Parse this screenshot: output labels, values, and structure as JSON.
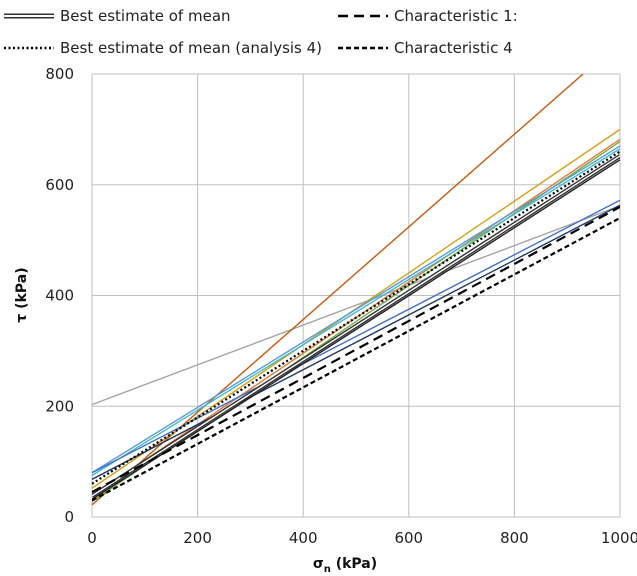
{
  "chart_data": {
    "type": "line",
    "title": "",
    "xlabel_main": "σ",
    "xlabel_sub": "n",
    "xlabel_unit": " (kPa)",
    "ylabel": "τ (kPa)",
    "xlim": [
      0,
      1000
    ],
    "ylim": [
      0,
      800
    ],
    "xticks": [
      0,
      200,
      400,
      600,
      800,
      1000
    ],
    "yticks": [
      0,
      200,
      400,
      600,
      800
    ],
    "grid": true,
    "legend_position": "top",
    "legend": [
      {
        "name": "Best estimate of mean",
        "style": "double"
      },
      {
        "name": "Characteristic 1:",
        "style": "longdash"
      },
      {
        "name": "Best estimate of mean (analysis 4)",
        "style": "dotted"
      },
      {
        "name": "Characteristic 4",
        "style": "shortdash"
      }
    ],
    "series": [
      {
        "color": "#a5a5a5",
        "x": [
          0,
          1000
        ],
        "y": [
          203,
          562
        ]
      },
      {
        "color": "#c55a11",
        "x": [
          0,
          930
        ],
        "y": [
          22,
          800
        ]
      },
      {
        "color": "#d4a017",
        "x": [
          0,
          1000
        ],
        "y": [
          52,
          700
        ]
      },
      {
        "color": "#e07b39",
        "x": [
          0,
          1000
        ],
        "y": [
          38,
          682
        ]
      },
      {
        "color": "#70ad47",
        "x": [
          0,
          1000
        ],
        "y": [
          28,
          678
        ]
      },
      {
        "color": "#5b9bd5",
        "x": [
          0,
          1000
        ],
        "y": [
          80,
          670
        ]
      },
      {
        "color": "#44b9c9",
        "x": [
          0,
          1000
        ],
        "y": [
          75,
          665
        ]
      },
      {
        "color": "#4472c4",
        "x": [
          0,
          1000
        ],
        "y": [
          80,
          572
        ]
      },
      {
        "color": "#1f3864",
        "x": [
          0,
          1000
        ],
        "y": [
          68,
          563
        ]
      },
      {
        "color": "#333333",
        "x": [
          0,
          1000
        ],
        "y": [
          38,
          652
        ],
        "style": "double"
      },
      {
        "color": "#222222",
        "x": [
          0,
          1000
        ],
        "y": [
          32,
          645
        ]
      },
      {
        "color": "#000000",
        "x": [
          0,
          1000
        ],
        "y": [
          60,
          660
        ],
        "style": "dotted"
      },
      {
        "color": "#000000",
        "x": [
          0,
          1000
        ],
        "y": [
          45,
          560
        ],
        "style": "longdash"
      },
      {
        "color": "#000000",
        "x": [
          0,
          1000
        ],
        "y": [
          30,
          540
        ],
        "style": "shortdash"
      }
    ]
  }
}
